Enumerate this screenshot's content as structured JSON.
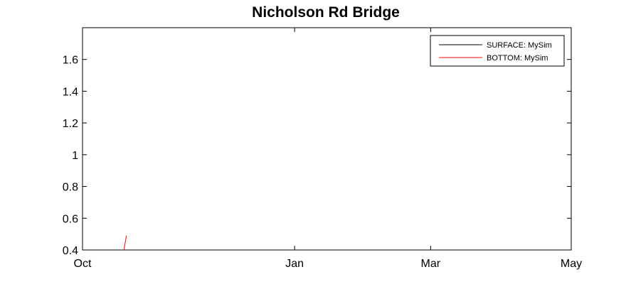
{
  "chart_data": {
    "type": "line",
    "title": "Nicholson Rd Bridge",
    "xlabel": "",
    "ylabel": "",
    "x_axis": {
      "type": "date",
      "range": [
        "2010-10-01",
        "2011-05-01"
      ],
      "ticks": [
        {
          "date": "2010-10-01",
          "label": "Oct"
        },
        {
          "date": "2011-01-01",
          "label": "Jan"
        },
        {
          "date": "2011-03-01",
          "label": "Mar"
        },
        {
          "date": "2011-05-01",
          "label": "May"
        }
      ]
    },
    "y_axis": {
      "range": [
        0.4,
        1.8
      ],
      "ticks": [
        {
          "value": 0.4,
          "label": "0.4"
        },
        {
          "value": 0.6,
          "label": "0.6"
        },
        {
          "value": 0.8,
          "label": "0.8"
        },
        {
          "value": 1.0,
          "label": "1"
        },
        {
          "value": 1.2,
          "label": "1.2"
        },
        {
          "value": 1.4,
          "label": "1.4"
        },
        {
          "value": 1.6,
          "label": "1.6"
        }
      ]
    },
    "grid": false,
    "legend_position": "top-right",
    "series": [
      {
        "name": "SURFACE: MySim",
        "color": "#000000",
        "points": []
      },
      {
        "name": "BOTTOM: MySim",
        "color": "#ff0000",
        "points": [
          {
            "x": "2010-10-19",
            "y": 0.4
          },
          {
            "x": "2010-10-20",
            "y": 0.49
          }
        ]
      }
    ]
  }
}
